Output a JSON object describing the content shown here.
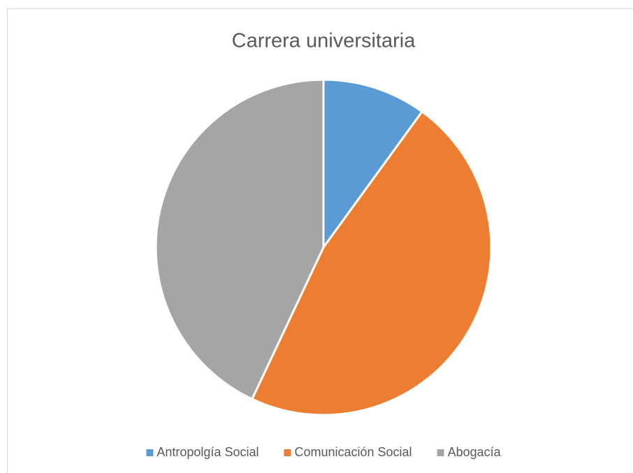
{
  "chart_data": {
    "type": "pie",
    "title": "Carrera universitaria",
    "categories": [
      "Antropolgía Social",
      "Comunicación Social",
      "Abogacía"
    ],
    "values": [
      10,
      47,
      43
    ],
    "colors": [
      "#5b9bd5",
      "#ed7d31",
      "#a5a5a5"
    ],
    "legend": "bottom"
  }
}
